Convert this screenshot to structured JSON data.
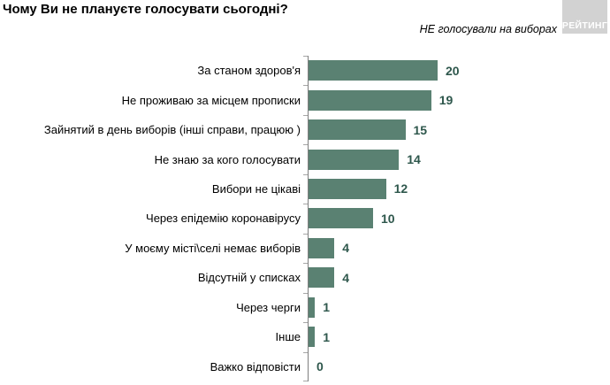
{
  "header": {
    "title": "Чому Ви не плануєте голосувати сьогодні?",
    "subtitle": "НЕ голосували на виборах",
    "logo_text": "РЕЙТИНГ"
  },
  "chart_data": {
    "type": "bar",
    "orientation": "horizontal",
    "title": "Чому Ви не плануєте голосувати сьогодні?",
    "subtitle": "НЕ голосували на виборах",
    "categories": [
      "За станом здоров'я",
      "Не проживаю за місцем прописки",
      "Зайнятий в день виборів (інші справи, працюю )",
      "Не знаю за кого голосувати",
      "Вибори не цікаві",
      "Через епідемію коронавірусу",
      "У моєму місті\\селі немає виборів",
      "Відсутній у списках",
      "Через черги",
      "Інше",
      "Важко відповісти"
    ],
    "values": [
      20,
      19,
      15,
      14,
      12,
      10,
      4,
      4,
      1,
      1,
      0
    ],
    "xlim": [
      0,
      20
    ],
    "grid": false,
    "legend": false,
    "data_labels": true,
    "colors": {
      "bar": "#5a8172",
      "value_label": "#2e574c",
      "axis": "#7f7f7f",
      "tick": "#a6a6a6",
      "logo_bg": "#d2d2d2",
      "logo_text": "#ffffff"
    }
  }
}
